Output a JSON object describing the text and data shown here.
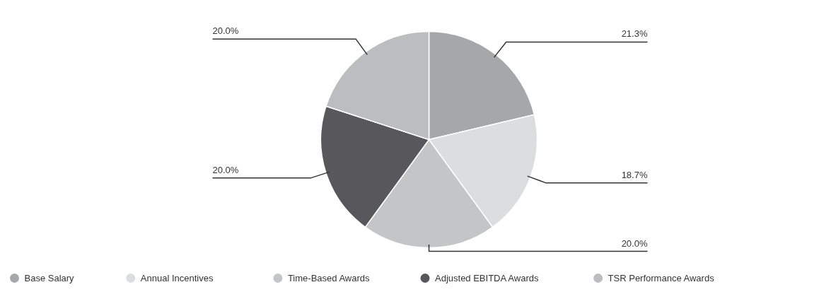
{
  "chart_data": {
    "type": "pie",
    "categories": [
      "Base Salary",
      "Annual Incentives",
      "Time-Based Awards",
      "Adjusted EBITDA Awards",
      "TSR Performance Awards"
    ],
    "values": [
      21.3,
      18.7,
      20.0,
      20.0,
      20.0
    ],
    "colors": [
      "#a6a7a9",
      "#dcdddf",
      "#c4c5c7",
      "#58585c",
      "#bcbdc0"
    ],
    "value_labels": [
      "21.3%",
      "18.7%",
      "20.0%",
      "20.0%",
      "20.0%"
    ],
    "legend": "bottom"
  }
}
